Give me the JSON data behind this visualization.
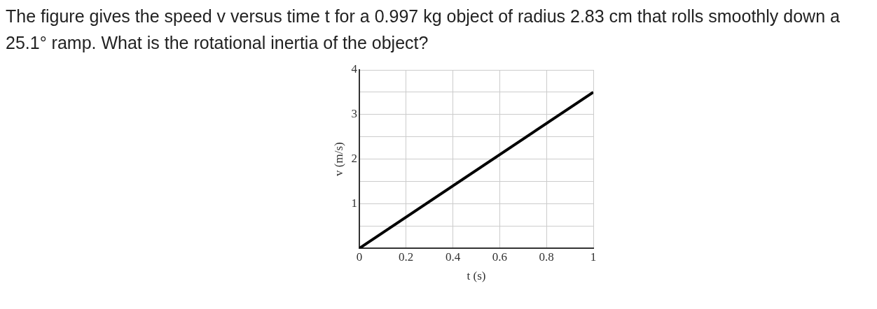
{
  "chart_data": {
    "type": "line",
    "title": "The figure gives the speed v versus time t for a 0.997 kg object of radius 2.83 cm that rolls smoothly down a 25.1° ramp. What is the rotational inertia of the object?",
    "xlabel": "t (s)",
    "ylabel": "v (m/s)",
    "x": [
      0,
      1
    ],
    "series": [
      {
        "color": "#000000",
        "values": [
          0,
          3.5
        ]
      }
    ],
    "xlim": [
      0,
      1
    ],
    "ylim": [
      0,
      4
    ],
    "xticks": [
      0,
      0.2,
      0.4,
      0.6,
      0.8,
      1
    ],
    "yticks": [
      {
        "value": 0,
        "label": null
      },
      {
        "value": 0.5,
        "label": null
      },
      1,
      {
        "value": 1.5,
        "label": null
      },
      2,
      {
        "value": 2.5,
        "label": null
      },
      3,
      {
        "value": 3.5,
        "label": null
      },
      4
    ],
    "grid": true,
    "marker": "none",
    "line_style": "solid",
    "legend": false
  }
}
